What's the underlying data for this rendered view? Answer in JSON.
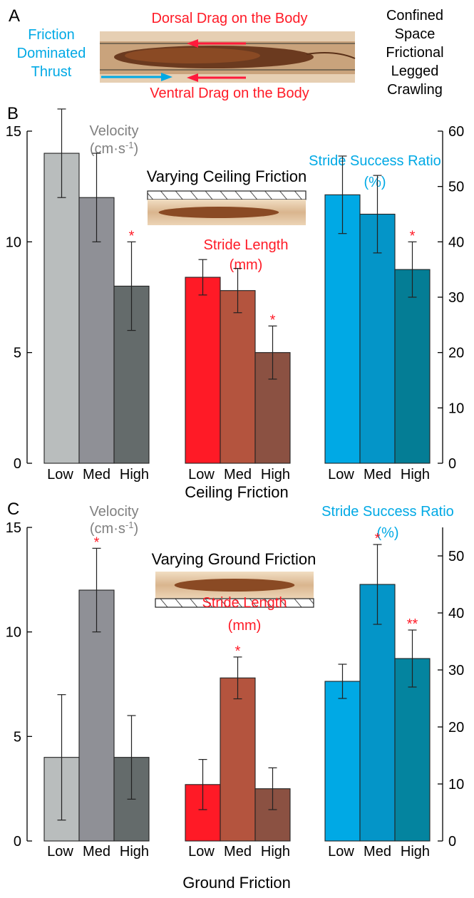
{
  "panel_a": {
    "label": "A",
    "friction_line1": "Friction",
    "friction_line2": "Dominated",
    "friction_line3": "Thrust",
    "dorsal": "Dorsal Drag on the Body",
    "ventral": "Ventral Drag on the Body",
    "side_line1": "Confined",
    "side_line2": "Space",
    "side_line3": "Frictional",
    "side_line4": "Legged",
    "side_line5": "Crawling"
  },
  "colors": {
    "gray": [
      "#b9bdbd",
      "#8f9096",
      "#646b6b"
    ],
    "red": [
      "#ff1a26",
      "#b4543e",
      "#8b5142"
    ],
    "blue_b": [
      "#00a9e5",
      "#0495c8",
      "#047d95"
    ],
    "blue_c": [
      "#00a9e5",
      "#0495c8",
      "#04849f"
    ],
    "star": "#ff1a26",
    "velocity_title": "#808080",
    "stride_length_title": "#ff1a26",
    "success_title": "#00a9e5"
  },
  "chart_data": [
    {
      "panel": "B",
      "type": "bar",
      "title": "Varying Ceiling Friction",
      "xlabel": "Ceiling Friction",
      "left_axis": {
        "ylim": [
          0,
          15
        ],
        "ticks": [
          "0",
          "5",
          "10",
          "15"
        ],
        "tick_values": [
          0,
          5,
          10,
          15
        ]
      },
      "right_axis": {
        "ylim": [
          0,
          60
        ],
        "ticks": [
          "0",
          "10",
          "20",
          "30",
          "40",
          "50",
          "60"
        ],
        "tick_values": [
          0,
          10,
          20,
          30,
          40,
          50,
          60
        ]
      },
      "categories": [
        "Low",
        "Med",
        "High"
      ],
      "groups": [
        {
          "name_line1": "Velocity",
          "name_line2": "(cm·s",
          "name_sup": "-1",
          "name_line2_end": ")",
          "axis": "left",
          "values": [
            14,
            12,
            8
          ],
          "err_low": [
            12,
            10,
            6
          ],
          "err_high": [
            16,
            14,
            10
          ],
          "stars": [
            "",
            "",
            "*"
          ]
        },
        {
          "name_line1": "Stride Length",
          "name_line2": "(mm)",
          "axis": "left",
          "values": [
            8.4,
            7.8,
            5.0
          ],
          "err_low": [
            7.6,
            6.8,
            3.8
          ],
          "err_high": [
            9.2,
            8.8,
            6.2
          ],
          "stars": [
            "",
            "",
            "*"
          ]
        },
        {
          "name_line1": "Stride Success Ratio",
          "name_line2": "(%)",
          "axis": "right",
          "values": [
            48.5,
            45,
            35
          ],
          "err_low": [
            41.5,
            38,
            30
          ],
          "err_high": [
            55.5,
            52,
            40
          ],
          "stars": [
            "",
            "",
            "*"
          ]
        }
      ]
    },
    {
      "panel": "C",
      "type": "bar",
      "title": "Varying Ground Friction",
      "xlabel": "Ground Friction",
      "left_axis": {
        "ylim": [
          0,
          15
        ],
        "ticks": [
          "0",
          "5",
          "10",
          "15"
        ],
        "tick_values": [
          0,
          5,
          10,
          15
        ]
      },
      "right_axis": {
        "ylim": [
          0,
          55
        ],
        "ticks": [
          "0",
          "10",
          "20",
          "30",
          "40",
          "50"
        ],
        "tick_values": [
          0,
          10,
          20,
          30,
          40,
          50
        ]
      },
      "categories": [
        "Low",
        "Med",
        "High"
      ],
      "groups": [
        {
          "name_line1": "Velocity",
          "name_line2": "(cm·s",
          "name_sup": "-1",
          "name_line2_end": ")",
          "axis": "left",
          "values": [
            4,
            12,
            4
          ],
          "err_low": [
            1,
            10,
            2
          ],
          "err_high": [
            7,
            14,
            6
          ],
          "stars": [
            "",
            "*",
            ""
          ]
        },
        {
          "name_line1": "Stride Length",
          "name_line2": "(mm)",
          "axis": "left",
          "values": [
            2.7,
            7.8,
            2.5
          ],
          "err_low": [
            1.5,
            6.8,
            1.5
          ],
          "err_high": [
            3.9,
            8.8,
            3.5
          ],
          "stars": [
            "",
            "*",
            ""
          ]
        },
        {
          "name_line1": "Stride Success Ratio",
          "name_line2": "(%)",
          "axis": "right",
          "values": [
            28,
            45,
            32
          ],
          "err_low": [
            25,
            38,
            27
          ],
          "err_high": [
            31,
            52,
            37
          ],
          "stars": [
            "",
            "*",
            "**"
          ]
        }
      ]
    }
  ]
}
